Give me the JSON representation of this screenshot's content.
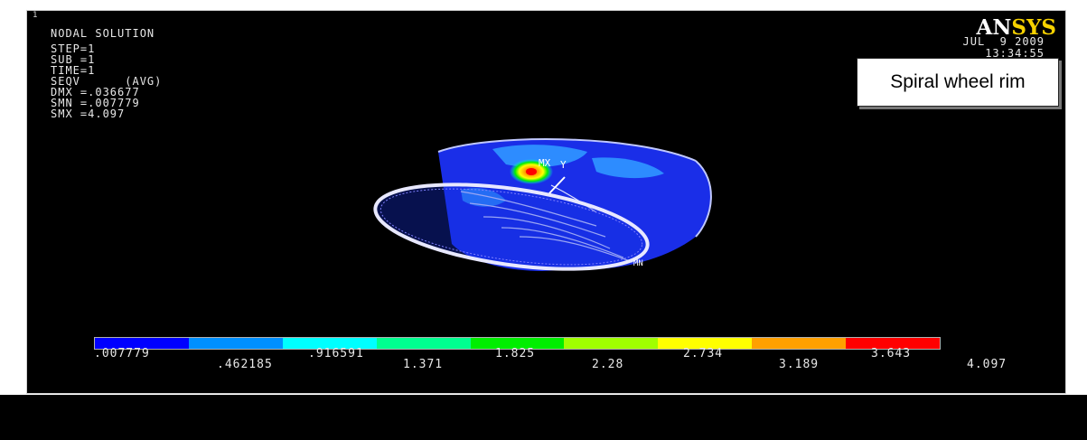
{
  "window_number": "1",
  "info_lines": [
    "NODAL SOLUTION",
    "STEP=1",
    "SUB =1",
    "TIME=1",
    "SEQV      (AVG)",
    "DMX =.036677",
    "SMN =.007779",
    "SMX =4.097"
  ],
  "logo": {
    "part1": "AN",
    "part2": "SYS"
  },
  "date": "JUL  9 2009",
  "time": "13:34:55",
  "title_box": "Spiral wheel rim",
  "markers": {
    "mx": "MX",
    "y": "Y",
    "mn": "MN"
  },
  "legend": {
    "colors": [
      "#0000ff",
      "#0090ff",
      "#00ffff",
      "#00ff90",
      "#00ee00",
      "#a0ff00",
      "#ffff00",
      "#ffa000",
      "#ff0000"
    ],
    "labels_upper": [
      ".007779",
      ".916591",
      "1.825",
      "2.734",
      "3.643"
    ],
    "labels_lower": [
      ".462185",
      "1.371",
      "2.28",
      "3.189",
      "4.097"
    ]
  }
}
